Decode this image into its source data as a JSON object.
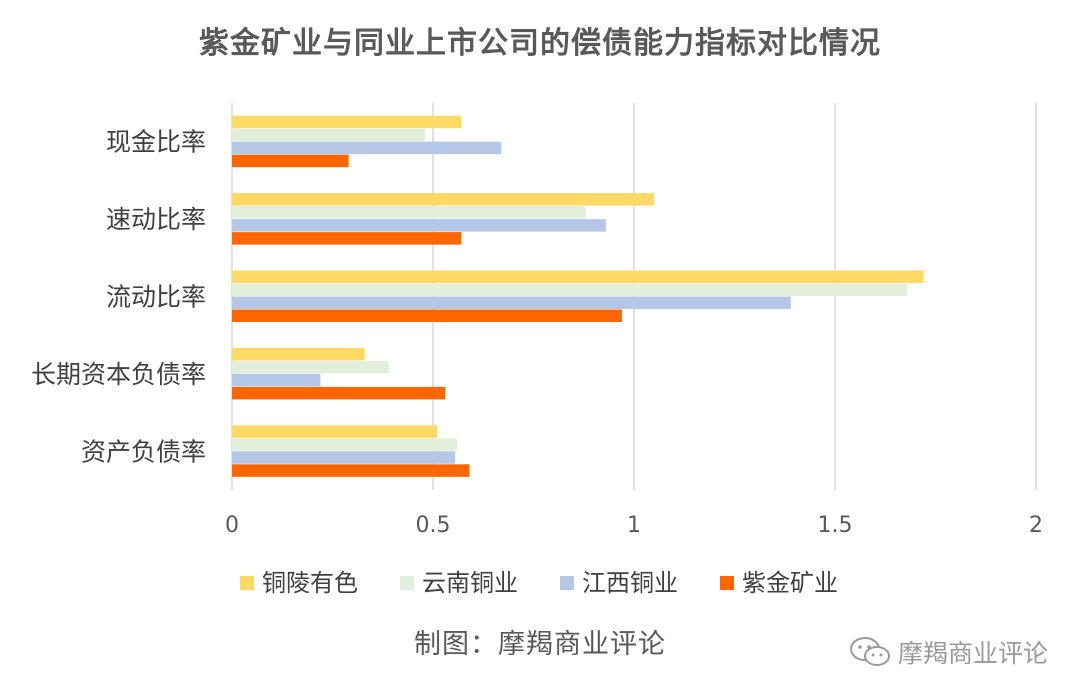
{
  "chart_data": {
    "type": "bar",
    "orientation": "horizontal",
    "title": "紫金矿业与同业上市公司的偿债能力指标对比情况",
    "categories": [
      "现金比率",
      "速动比率",
      "流动比率",
      "长期资本负债率",
      "资产负债率"
    ],
    "series": [
      {
        "name": "铜陵有色",
        "color": "#FFD966",
        "values": [
          0.57,
          1.05,
          1.72,
          0.33,
          0.51
        ]
      },
      {
        "name": "云南铜业",
        "color": "#E2EFDA",
        "values": [
          0.48,
          0.88,
          1.68,
          0.39,
          0.56
        ]
      },
      {
        "name": "江西铜业",
        "color": "#B4C7E7",
        "values": [
          0.67,
          0.93,
          1.39,
          0.22,
          0.555
        ]
      },
      {
        "name": "紫金矿业",
        "color": "#FF6600",
        "values": [
          0.29,
          0.57,
          0.97,
          0.53,
          0.59
        ]
      }
    ],
    "xlim": [
      0,
      2
    ],
    "x_ticks": [
      "0",
      "0.5",
      "1",
      "1.5",
      "2"
    ],
    "grid": "vertical",
    "legend_position": "bottom"
  },
  "footer": {
    "source": "制图：摩羯商业评论",
    "watermark": "摩羯商业评论"
  }
}
